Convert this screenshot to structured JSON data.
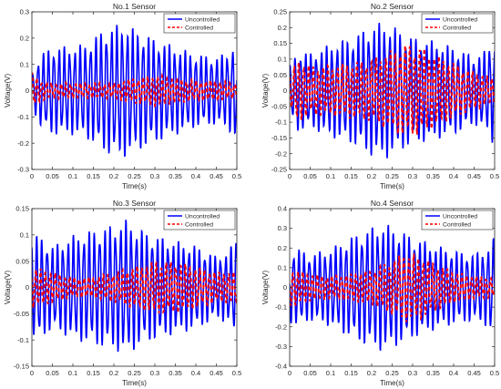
{
  "colors": {
    "uncontrolled": "#0000ff",
    "controlled": "#ff0000",
    "axis": "#262626",
    "background": "#ffffff"
  },
  "chart_data": [
    {
      "type": "line",
      "title": "No.1 Sensor",
      "xlabel": "Time(s)",
      "ylabel": "Voltage(V)",
      "xlim": [
        0,
        0.5
      ],
      "ylim": [
        -0.3,
        0.3
      ],
      "xticks": [
        "0",
        "0.05",
        "0.1",
        "0.15",
        "0.2",
        "0.25",
        "0.3",
        "0.35",
        "0.4",
        "0.45",
        "0.5"
      ],
      "yticks": [
        "-0.3",
        "-0.2",
        "-0.1",
        "0",
        "0.1",
        "0.2",
        "0.3"
      ],
      "grid": false,
      "legend_position": "top-right",
      "series": [
        {
          "name": "Uncontrolled",
          "style": "solid",
          "dominant_freq_hz": 78,
          "envelope": [
            [
              0,
              0.06
            ],
            [
              0.02,
              0.14
            ],
            [
              0.05,
              0.17
            ],
            [
              0.1,
              0.17
            ],
            [
              0.13,
              0.18
            ],
            [
              0.18,
              0.24
            ],
            [
              0.22,
              0.26
            ],
            [
              0.26,
              0.23
            ],
            [
              0.3,
              0.2
            ],
            [
              0.35,
              0.17
            ],
            [
              0.4,
              0.14
            ],
            [
              0.45,
              0.13
            ],
            [
              0.48,
              0.15
            ],
            [
              0.5,
              0.2
            ]
          ]
        },
        {
          "name": "Controlled",
          "style": "dashed",
          "dominant_freq_hz": 85,
          "envelope": [
            [
              0,
              0.07
            ],
            [
              0.02,
              0.04
            ],
            [
              0.05,
              0.03
            ],
            [
              0.1,
              0.03
            ],
            [
              0.15,
              0.03
            ],
            [
              0.2,
              0.03
            ],
            [
              0.25,
              0.05
            ],
            [
              0.3,
              0.06
            ],
            [
              0.35,
              0.05
            ],
            [
              0.4,
              0.04
            ],
            [
              0.45,
              0.04
            ],
            [
              0.5,
              0.03
            ]
          ]
        }
      ]
    },
    {
      "type": "line",
      "title": "No.2 Sensor",
      "xlabel": "Time(s)",
      "ylabel": "Voltage(V)",
      "xlim": [
        0,
        0.5
      ],
      "ylim": [
        -0.25,
        0.25
      ],
      "xticks": [
        "0",
        "0.05",
        "0.1",
        "0.15",
        "0.2",
        "0.25",
        "0.3",
        "0.35",
        "0.4",
        "0.45",
        "0.5"
      ],
      "yticks": [
        "-0.25",
        "-0.2",
        "-0.15",
        "-0.1",
        "-0.05",
        "0",
        "0.05",
        "0.1",
        "0.15",
        "0.2",
        "0.25"
      ],
      "grid": false,
      "legend_position": "top-right",
      "series": [
        {
          "name": "Uncontrolled",
          "style": "solid",
          "dominant_freq_hz": 78,
          "envelope": [
            [
              0,
              0.08
            ],
            [
              0.02,
              0.13
            ],
            [
              0.05,
              0.12
            ],
            [
              0.1,
              0.15
            ],
            [
              0.15,
              0.17
            ],
            [
              0.2,
              0.21
            ],
            [
              0.23,
              0.22
            ],
            [
              0.26,
              0.2
            ],
            [
              0.3,
              0.17
            ],
            [
              0.35,
              0.16
            ],
            [
              0.4,
              0.14
            ],
            [
              0.45,
              0.11
            ],
            [
              0.48,
              0.13
            ],
            [
              0.5,
              0.18
            ]
          ]
        },
        {
          "name": "Controlled",
          "style": "dashed",
          "dominant_freq_hz": 85,
          "envelope": [
            [
              0,
              0.05
            ],
            [
              0.02,
              0.1
            ],
            [
              0.05,
              0.08
            ],
            [
              0.1,
              0.08
            ],
            [
              0.15,
              0.09
            ],
            [
              0.2,
              0.1
            ],
            [
              0.25,
              0.13
            ],
            [
              0.28,
              0.15
            ],
            [
              0.32,
              0.14
            ],
            [
              0.35,
              0.12
            ],
            [
              0.4,
              0.09
            ],
            [
              0.45,
              0.06
            ],
            [
              0.5,
              0.04
            ]
          ]
        }
      ]
    },
    {
      "type": "line",
      "title": "No.3 Sensor",
      "xlabel": "Time(s)",
      "ylabel": "Voltage(V)",
      "xlim": [
        0,
        0.5
      ],
      "ylim": [
        -0.15,
        0.15
      ],
      "xticks": [
        "0",
        "0.05",
        "0.1",
        "0.15",
        "0.2",
        "0.25",
        "0.3",
        "0.35",
        "0.4",
        "0.45",
        "0.5"
      ],
      "yticks": [
        "-0.15",
        "-0.1",
        "-0.05",
        "0",
        "0.05",
        "0.1",
        "0.15"
      ],
      "grid": false,
      "legend_position": "top-right",
      "series": [
        {
          "name": "Uncontrolled",
          "style": "solid",
          "dominant_freq_hz": 78,
          "envelope": [
            [
              0,
              0.1
            ],
            [
              0.02,
              0.1
            ],
            [
              0.05,
              0.08
            ],
            [
              0.1,
              0.1
            ],
            [
              0.15,
              0.11
            ],
            [
              0.2,
              0.12
            ],
            [
              0.23,
              0.13
            ],
            [
              0.27,
              0.11
            ],
            [
              0.3,
              0.1
            ],
            [
              0.35,
              0.09
            ],
            [
              0.4,
              0.08
            ],
            [
              0.45,
              0.06
            ],
            [
              0.48,
              0.07
            ],
            [
              0.5,
              0.1
            ]
          ]
        },
        {
          "name": "Controlled",
          "style": "dashed",
          "dominant_freq_hz": 85,
          "envelope": [
            [
              0,
              0.04
            ],
            [
              0.05,
              0.03
            ],
            [
              0.1,
              0.02
            ],
            [
              0.15,
              0.02
            ],
            [
              0.2,
              0.03
            ],
            [
              0.25,
              0.04
            ],
            [
              0.3,
              0.05
            ],
            [
              0.35,
              0.05
            ],
            [
              0.4,
              0.04
            ],
            [
              0.45,
              0.03
            ],
            [
              0.5,
              0.03
            ]
          ]
        }
      ]
    },
    {
      "type": "line",
      "title": "No.4 Sensor",
      "xlabel": "Time(s)",
      "ylabel": "Voltage(V)",
      "xlim": [
        0,
        0.5
      ],
      "ylim": [
        -0.4,
        0.4
      ],
      "xticks": [
        "0",
        "0.05",
        "0.1",
        "0.15",
        "0.2",
        "0.25",
        "0.3",
        "0.35",
        "0.4",
        "0.45",
        "0.5"
      ],
      "yticks": [
        "-0.4",
        "-0.3",
        "-0.2",
        "-0.1",
        "0",
        "0.1",
        "0.2",
        "0.3",
        "0.4"
      ],
      "grid": false,
      "legend_position": "top-right",
      "series": [
        {
          "name": "Uncontrolled",
          "style": "solid",
          "dominant_freq_hz": 78,
          "envelope": [
            [
              0,
              0.18
            ],
            [
              0.02,
              0.2
            ],
            [
              0.05,
              0.17
            ],
            [
              0.1,
              0.2
            ],
            [
              0.15,
              0.26
            ],
            [
              0.2,
              0.31
            ],
            [
              0.23,
              0.33
            ],
            [
              0.26,
              0.3
            ],
            [
              0.3,
              0.26
            ],
            [
              0.35,
              0.22
            ],
            [
              0.4,
              0.19
            ],
            [
              0.45,
              0.17
            ],
            [
              0.48,
              0.2
            ],
            [
              0.5,
              0.26
            ]
          ]
        },
        {
          "name": "Controlled",
          "style": "dashed",
          "dominant_freq_hz": 85,
          "envelope": [
            [
              0,
              0.1
            ],
            [
              0.05,
              0.07
            ],
            [
              0.1,
              0.06
            ],
            [
              0.15,
              0.07
            ],
            [
              0.2,
              0.09
            ],
            [
              0.25,
              0.14
            ],
            [
              0.28,
              0.18
            ],
            [
              0.32,
              0.16
            ],
            [
              0.36,
              0.12
            ],
            [
              0.4,
              0.08
            ],
            [
              0.45,
              0.06
            ],
            [
              0.5,
              0.05
            ]
          ]
        }
      ]
    }
  ]
}
